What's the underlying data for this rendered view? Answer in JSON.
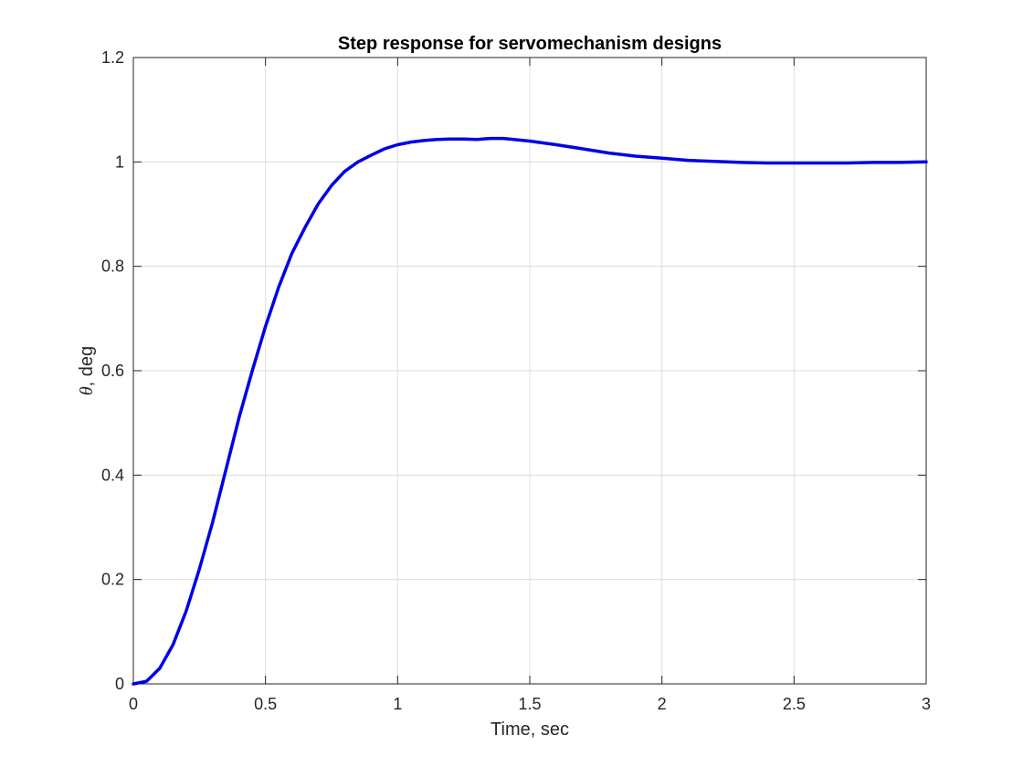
{
  "chart_data": {
    "type": "line",
    "title": "Step response for servomechanism designs",
    "xlabel": "Time, sec",
    "ylabel_symbol": "θ",
    "ylabel_text": ", deg",
    "xlim": [
      0,
      3
    ],
    "ylim": [
      0,
      1.2
    ],
    "grid": true,
    "legend": "none",
    "x_ticks": [
      0,
      0.5,
      1,
      1.5,
      2,
      2.5,
      3
    ],
    "x_tick_labels": [
      "0",
      "0.5",
      "1",
      "1.5",
      "2",
      "2.5",
      "3"
    ],
    "y_ticks": [
      0,
      0.2,
      0.4,
      0.6,
      0.8,
      1.0,
      1.2
    ],
    "y_tick_labels": [
      "0",
      "0.2",
      "0.4",
      "0.6",
      "0.8",
      "1",
      "1.2"
    ],
    "series": [
      {
        "color": "#0000e6",
        "x": [
          0,
          0.05,
          0.1,
          0.15,
          0.2,
          0.25,
          0.3,
          0.35,
          0.4,
          0.45,
          0.5,
          0.55,
          0.6,
          0.65,
          0.7,
          0.75,
          0.8,
          0.85,
          0.9,
          0.95,
          1.0,
          1.05,
          1.1,
          1.15,
          1.2,
          1.25,
          1.3,
          1.35,
          1.4,
          1.5,
          1.6,
          1.7,
          1.8,
          1.9,
          2.0,
          2.1,
          2.2,
          2.3,
          2.4,
          2.5,
          2.6,
          2.7,
          2.8,
          2.9,
          3.0
        ],
        "y": [
          0,
          0.005,
          0.03,
          0.075,
          0.14,
          0.22,
          0.31,
          0.41,
          0.51,
          0.6,
          0.685,
          0.76,
          0.825,
          0.875,
          0.92,
          0.955,
          0.982,
          1.0,
          1.013,
          1.025,
          1.033,
          1.038,
          1.041,
          1.043,
          1.044,
          1.044,
          1.043,
          1.045,
          1.045,
          1.04,
          1.033,
          1.025,
          1.017,
          1.011,
          1.007,
          1.003,
          1.001,
          0.999,
          0.998,
          0.998,
          0.998,
          0.998,
          0.999,
          0.999,
          1.0
        ]
      }
    ]
  }
}
